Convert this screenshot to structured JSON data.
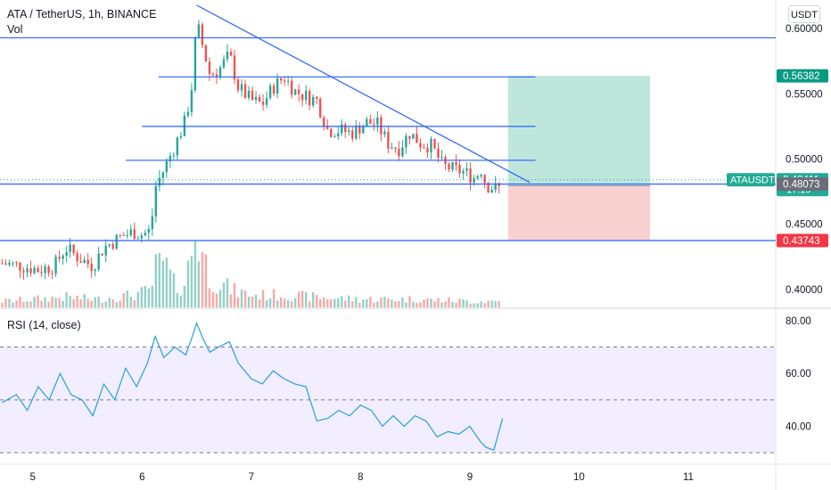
{
  "header": {
    "title": "ATA / TetherUS, 1h, BINANCE",
    "vol_label": "Vol",
    "currency_button": "USDT"
  },
  "rsi": {
    "title": "RSI (14, close)",
    "axis_ticks": [
      "80.00",
      "60.00",
      "40.00"
    ],
    "tick_values": [
      80,
      60,
      40
    ],
    "upper_band": 70,
    "lower_band": 30,
    "middle_line": 50,
    "line_color": "#26a0da"
  },
  "badges": {
    "target": {
      "text": "0.56382",
      "value": 0.56382,
      "color": "#089981"
    },
    "symbol": {
      "text": "ATAUSDT",
      "value": 0.48411,
      "color": "#22ab94"
    },
    "last": {
      "text": "0.48411",
      "countdown": "17:19",
      "color": "#22ab94"
    },
    "support": {
      "text": "0.48073",
      "value": 0.48073,
      "color": "#6a6d78"
    },
    "stop": {
      "text": "0.43743",
      "value": 0.43743,
      "color": "#f23645"
    }
  },
  "chart_data": [
    {
      "type": "candlestick",
      "title": "ATA / TetherUS, 1h, BINANCE",
      "y_ticks": [
        "0.60000",
        "0.55000",
        "0.50000",
        "0.45000",
        "0.40000"
      ],
      "y_tick_values": [
        0.6,
        0.55,
        0.5,
        0.45,
        0.4
      ],
      "x_ticks": [
        "5",
        "6",
        "7",
        "8",
        "9",
        "10",
        "11"
      ],
      "x_tick_values": [
        5,
        6,
        7,
        8,
        9,
        10,
        11
      ],
      "x_range": [
        4.7,
        11.8
      ],
      "y_range": [
        0.393,
        0.622
      ],
      "current_price": 0.48411,
      "up_color": "#26a69a",
      "down_color": "#ef5350",
      "price_path": [
        [
          4.72,
          0.42
        ],
        [
          4.9,
          0.418
        ],
        [
          5.05,
          0.415
        ],
        [
          5.2,
          0.418
        ],
        [
          5.3,
          0.432
        ],
        [
          5.42,
          0.424
        ],
        [
          5.55,
          0.418
        ],
        [
          5.65,
          0.432
        ],
        [
          5.8,
          0.44
        ],
        [
          5.92,
          0.444
        ],
        [
          6.0,
          0.442
        ],
        [
          6.08,
          0.445
        ],
        [
          6.12,
          0.478
        ],
        [
          6.2,
          0.492
        ],
        [
          6.3,
          0.51
        ],
        [
          6.4,
          0.53
        ],
        [
          6.46,
          0.558
        ],
        [
          6.5,
          0.605
        ],
        [
          6.56,
          0.585
        ],
        [
          6.62,
          0.565
        ],
        [
          6.7,
          0.568
        ],
        [
          6.8,
          0.58
        ],
        [
          6.88,
          0.555
        ],
        [
          7.0,
          0.545
        ],
        [
          7.1,
          0.542
        ],
        [
          7.2,
          0.555
        ],
        [
          7.3,
          0.563
        ],
        [
          7.4,
          0.552
        ],
        [
          7.5,
          0.548
        ],
        [
          7.6,
          0.545
        ],
        [
          7.7,
          0.522
        ],
        [
          7.82,
          0.522
        ],
        [
          7.92,
          0.52
        ],
        [
          8.05,
          0.528
        ],
        [
          8.15,
          0.527
        ],
        [
          8.25,
          0.512
        ],
        [
          8.35,
          0.508
        ],
        [
          8.45,
          0.52
        ],
        [
          8.55,
          0.512
        ],
        [
          8.65,
          0.51
        ],
        [
          8.75,
          0.495
        ],
        [
          8.85,
          0.492
        ],
        [
          8.95,
          0.49
        ],
        [
          9.05,
          0.485
        ],
        [
          9.1,
          0.493
        ],
        [
          9.15,
          0.48
        ],
        [
          9.22,
          0.478
        ],
        [
          9.26,
          0.476
        ],
        [
          9.3,
          0.484
        ]
      ],
      "volume_path": [
        [
          4.72,
          0.003
        ],
        [
          5.0,
          0.004
        ],
        [
          5.3,
          0.005
        ],
        [
          5.6,
          0.004
        ],
        [
          5.9,
          0.006
        ],
        [
          6.08,
          0.008
        ],
        [
          6.12,
          0.018
        ],
        [
          6.2,
          0.022
        ],
        [
          6.3,
          0.01
        ],
        [
          6.4,
          0.012
        ],
        [
          6.46,
          0.03
        ],
        [
          6.5,
          0.038
        ],
        [
          6.56,
          0.025
        ],
        [
          6.62,
          0.015
        ],
        [
          6.7,
          0.012
        ],
        [
          6.85,
          0.008
        ],
        [
          7.0,
          0.006
        ],
        [
          7.3,
          0.006
        ],
        [
          7.6,
          0.005
        ],
        [
          8.0,
          0.004
        ],
        [
          8.5,
          0.004
        ],
        [
          9.0,
          0.003
        ],
        [
          9.3,
          0.003
        ]
      ],
      "horizontal_levels": [
        {
          "value": 0.593,
          "x_from": 4.7,
          "x_to": 11.8
        },
        {
          "value": 0.563,
          "x_from": 6.15,
          "x_to": 9.6
        },
        {
          "value": 0.525,
          "x_from": 6.0,
          "x_to": 9.6
        },
        {
          "value": 0.499,
          "x_from": 5.85,
          "x_to": 9.6
        },
        {
          "value": 0.48073,
          "x_from": 4.7,
          "x_to": 11.8
        },
        {
          "value": 0.43743,
          "x_from": 4.7,
          "x_to": 11.8
        }
      ],
      "trendline": {
        "from": [
          6.5,
          0.618
        ],
        "to": [
          9.55,
          0.482
        ]
      },
      "long_position": {
        "x_from": 9.35,
        "x_to": 10.65,
        "entry": 0.4795,
        "target": 0.56382,
        "stop": 0.43743,
        "profit_color": "#bfe6dc",
        "loss_color": "#f9d0d0"
      }
    },
    {
      "type": "line",
      "title": "RSI (14, close)",
      "y_range": [
        26,
        84
      ],
      "series": [
        {
          "values": [
            [
              4.72,
              49
            ],
            [
              4.85,
              52
            ],
            [
              4.95,
              46
            ],
            [
              5.05,
              55
            ],
            [
              5.15,
              50
            ],
            [
              5.25,
              60
            ],
            [
              5.35,
              52
            ],
            [
              5.45,
              50
            ],
            [
              5.55,
              44
            ],
            [
              5.65,
              56
            ],
            [
              5.75,
              50
            ],
            [
              5.85,
              62
            ],
            [
              5.95,
              55
            ],
            [
              6.05,
              64
            ],
            [
              6.12,
              74
            ],
            [
              6.2,
              66
            ],
            [
              6.3,
              70
            ],
            [
              6.4,
              67
            ],
            [
              6.46,
              74
            ],
            [
              6.5,
              79
            ],
            [
              6.56,
              73
            ],
            [
              6.62,
              68
            ],
            [
              6.7,
              70
            ],
            [
              6.8,
              72
            ],
            [
              6.88,
              64
            ],
            [
              7.0,
              58
            ],
            [
              7.1,
              56
            ],
            [
              7.2,
              61
            ],
            [
              7.3,
              58
            ],
            [
              7.4,
              56
            ],
            [
              7.5,
              55
            ],
            [
              7.6,
              42
            ],
            [
              7.7,
              43
            ],
            [
              7.8,
              46
            ],
            [
              7.9,
              44
            ],
            [
              8.0,
              48
            ],
            [
              8.1,
              46
            ],
            [
              8.2,
              40
            ],
            [
              8.3,
              44
            ],
            [
              8.4,
              40
            ],
            [
              8.5,
              44
            ],
            [
              8.6,
              42
            ],
            [
              8.7,
              36
            ],
            [
              8.8,
              38
            ],
            [
              8.9,
              37
            ],
            [
              9.0,
              40
            ],
            [
              9.1,
              34
            ],
            [
              9.15,
              32
            ],
            [
              9.22,
              31
            ],
            [
              9.3,
              43
            ]
          ]
        }
      ]
    }
  ]
}
